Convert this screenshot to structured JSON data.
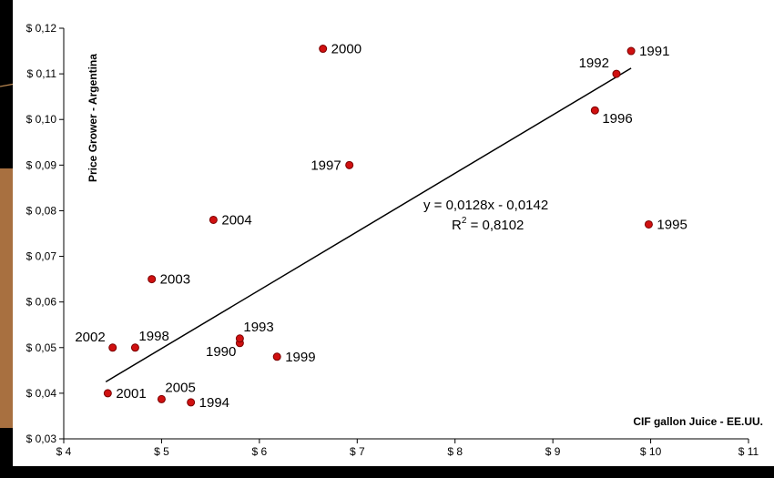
{
  "theme": {
    "page_background": "#000000",
    "accent_band": "#A87040",
    "accent_line": "#B88650",
    "plot_background": "#FFFFFF",
    "marker_fill": "#D01010",
    "marker_stroke": "#7A0000",
    "trendline_color": "#000000"
  },
  "chart_data": {
    "type": "scatter",
    "ylabel": "Price Grower - Argentina",
    "xlabel": "CIF gallon Juice - EE.UU.",
    "xlim": [
      4,
      11
    ],
    "ylim": [
      0.03,
      0.12
    ],
    "x_ticks": [
      4,
      5,
      6,
      7,
      8,
      9,
      10,
      11
    ],
    "x_tick_labels": [
      "$ 4",
      "$ 5",
      "$ 6",
      "$ 7",
      "$ 8",
      "$ 9",
      "$ 10",
      "$ 11"
    ],
    "y_ticks": [
      0.03,
      0.04,
      0.05,
      0.06,
      0.07,
      0.08,
      0.09,
      0.1,
      0.11,
      0.12
    ],
    "y_tick_labels": [
      "$ 0,03",
      "$ 0,04",
      "$ 0,05",
      "$ 0,06",
      "$ 0,07",
      "$ 0,08",
      "$ 0,09",
      "$ 0,10",
      "$ 0,11",
      "$ 0,12"
    ],
    "grid": false,
    "points": [
      {
        "label": "1990",
        "x": 5.8,
        "y": 0.051,
        "label_side": "left-below"
      },
      {
        "label": "1991",
        "x": 9.8,
        "y": 0.115,
        "label_side": "right"
      },
      {
        "label": "1992",
        "x": 9.65,
        "y": 0.11,
        "label_side": "left-above"
      },
      {
        "label": "1993",
        "x": 5.8,
        "y": 0.052,
        "label_side": "right-above"
      },
      {
        "label": "1994",
        "x": 5.3,
        "y": 0.038,
        "label_side": "right"
      },
      {
        "label": "1995",
        "x": 9.98,
        "y": 0.077,
        "label_side": "right"
      },
      {
        "label": "1996",
        "x": 9.43,
        "y": 0.102,
        "label_side": "right-below"
      },
      {
        "label": "1997",
        "x": 6.92,
        "y": 0.09,
        "label_side": "left"
      },
      {
        "label": "1998",
        "x": 4.73,
        "y": 0.05,
        "label_side": "right-above"
      },
      {
        "label": "1999",
        "x": 6.18,
        "y": 0.048,
        "label_side": "right"
      },
      {
        "label": "2000",
        "x": 6.65,
        "y": 0.1155,
        "label_side": "right"
      },
      {
        "label": "2001",
        "x": 4.45,
        "y": 0.04,
        "label_side": "right"
      },
      {
        "label": "2002",
        "x": 4.5,
        "y": 0.05,
        "label_side": "left-above"
      },
      {
        "label": "2003",
        "x": 4.9,
        "y": 0.065,
        "label_side": "right"
      },
      {
        "label": "2004",
        "x": 5.53,
        "y": 0.078,
        "label_side": "right"
      },
      {
        "label": "2005",
        "x": 5.0,
        "y": 0.0387,
        "label_side": "right-above"
      }
    ],
    "trendline": {
      "slope": 0.0128,
      "intercept": -0.0142,
      "x_start": 4.43,
      "x_end": 9.8
    },
    "annotations": {
      "equation": "y = 0,0128x - 0,0142",
      "r_squared_prefix": "R",
      "r_squared_exp": "2",
      "r_squared_value": " = 0,8102"
    }
  }
}
